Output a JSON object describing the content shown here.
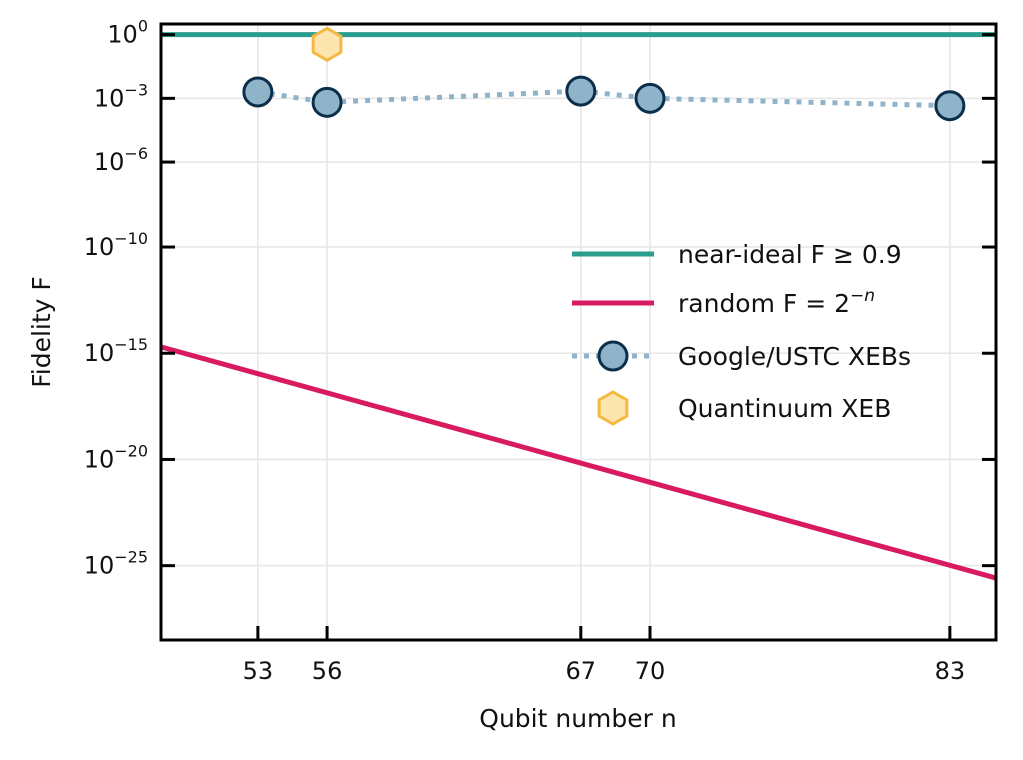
{
  "chart_data": {
    "type": "line",
    "title": "",
    "xlabel": "Qubit number n",
    "ylabel": "Fidelity F",
    "y_scale": "log",
    "grid": true,
    "legend_placement": "center-right",
    "xlim": [
      48.8,
      85
    ],
    "ylim_log10": [
      -28.5,
      0.5
    ],
    "xticks": [
      53,
      56,
      67,
      70,
      83
    ],
    "xtick_labels": [
      "53",
      "56",
      "67",
      "70",
      "83"
    ],
    "yticks_log10": [
      0,
      -3,
      -6,
      -10,
      -15,
      -20,
      -25
    ],
    "ytick_labels": [
      {
        "base": "10",
        "exp": "0"
      },
      {
        "base": "10",
        "exp": "−3"
      },
      {
        "base": "10",
        "exp": "−6"
      },
      {
        "base": "10",
        "exp": "−10"
      },
      {
        "base": "10",
        "exp": "−15"
      },
      {
        "base": "10",
        "exp": "−20"
      },
      {
        "base": "10",
        "exp": "−25"
      }
    ],
    "series": [
      {
        "name": "near-ideal F ≥ 0.9",
        "style": "line",
        "color": "#2a9d8f",
        "x": [
          48.8,
          85
        ],
        "y": [
          1,
          1
        ]
      },
      {
        "name": "random F = 2^−n",
        "style": "line",
        "color": "#d81b60",
        "x": [
          48.8,
          85
        ],
        "y": [
          2e-15,
          2.6e-26
        ]
      },
      {
        "name": "Google/USTC XEBs",
        "style": "dotted-line-markers",
        "color": "#8fb3c9",
        "edge_color": "#0b2f4a",
        "x": [
          53,
          56,
          67,
          70,
          83
        ],
        "y": [
          0.002,
          0.00065,
          0.0022,
          0.001,
          0.00045
        ]
      },
      {
        "name": "Quantinuum XEB",
        "style": "markers",
        "marker": "hexagon",
        "color": "#fde5b0",
        "edge_color": "#f5b942",
        "x": [
          56
        ],
        "y": [
          0.35
        ]
      }
    ],
    "legend": [
      {
        "label": "near-ideal F ≥ 0.9"
      },
      {
        "label_prefix": "random F = 2",
        "label_sup": "−n"
      },
      {
        "label": "Google/USTC XEBs"
      },
      {
        "label": "Quantinuum XEB"
      }
    ]
  }
}
